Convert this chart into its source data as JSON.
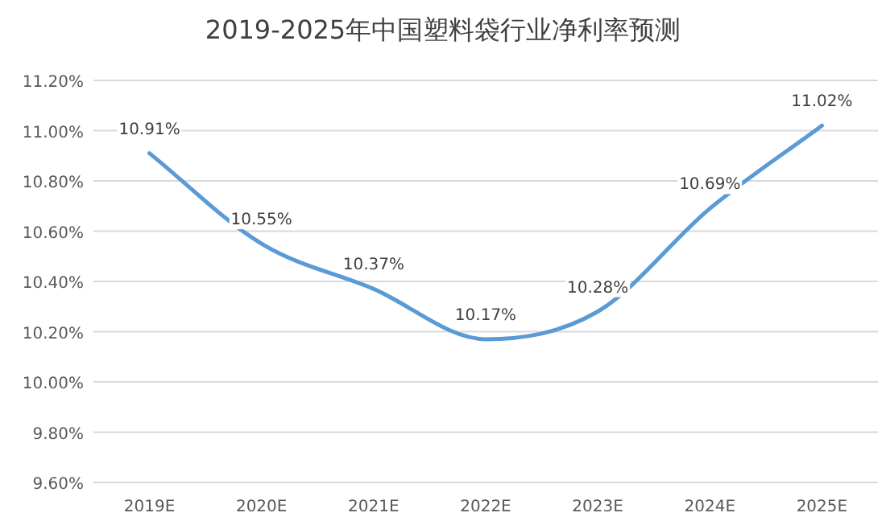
{
  "chart_data": {
    "type": "line",
    "title": "2019-2025年中国塑料袋行业净利率预测",
    "categories": [
      "2019E",
      "2020E",
      "2021E",
      "2022E",
      "2023E",
      "2024E",
      "2025E"
    ],
    "series": [
      {
        "color": "#5b9bd5",
        "values": [
          10.91,
          10.55,
          10.37,
          10.17,
          10.28,
          10.69,
          11.02
        ],
        "value_labels": [
          "10.91%",
          "10.55%",
          "10.37%",
          "10.17%",
          "10.28%",
          "10.69%",
          "11.02%"
        ]
      }
    ],
    "ylim": [
      9.6,
      11.2
    ],
    "yticks": [
      {
        "value": 9.6,
        "label": "9.60%"
      },
      {
        "value": 9.8,
        "label": "9.80%"
      },
      {
        "value": 10.0,
        "label": "10.00%"
      },
      {
        "value": 10.2,
        "label": "10.20%"
      },
      {
        "value": 10.4,
        "label": "10.40%"
      },
      {
        "value": 10.6,
        "label": "10.60%"
      },
      {
        "value": 10.8,
        "label": "10.80%"
      },
      {
        "value": 11.0,
        "label": "11.00%"
      },
      {
        "value": 11.2,
        "label": "11.20%"
      }
    ],
    "grid": "y",
    "marker": "none",
    "line_style": "solid"
  }
}
